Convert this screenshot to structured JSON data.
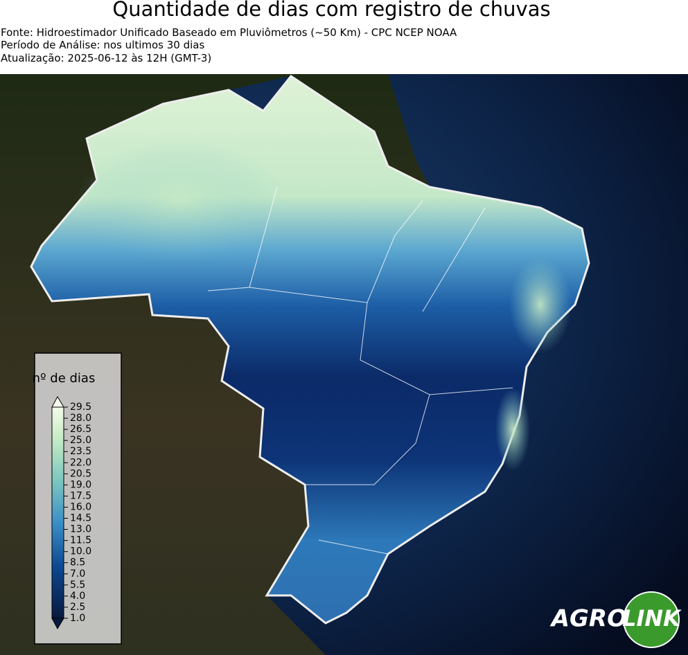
{
  "header": {
    "title": "Quantidade de dias com registro de chuvas",
    "lines": [
      "Fonte: Hidroestimador Unificado Baseado em Pluviômetros (~50 Km) - CPC NCEP NOAA",
      "Período de Análise: nos ultimos 30 dias",
      "Atualização: 2025-06-12 às 12H (GMT-3)"
    ]
  },
  "colorbar": {
    "label": "nº de dias",
    "ticks": [
      {
        "value": 1,
        "label": "1.0"
      },
      2.5,
      {
        "value": 4,
        "label": "4.0"
      },
      5.5,
      {
        "value": 7,
        "label": "7.0"
      },
      8.5,
      {
        "value": 10,
        "label": "10.0"
      },
      11.5,
      {
        "value": 13,
        "label": "13.0"
      },
      14.5,
      {
        "value": 16,
        "label": "16.0"
      },
      17.5,
      {
        "value": 19,
        "label": "19.0"
      },
      20.5,
      {
        "value": 22,
        "label": "22.0"
      },
      23.5,
      {
        "value": 25,
        "label": "25.0"
      },
      26.5,
      {
        "value": 28,
        "label": "28.0"
      },
      29.5
    ]
  },
  "logo": {
    "agro": "AGRO",
    "link": "LINK"
  }
}
